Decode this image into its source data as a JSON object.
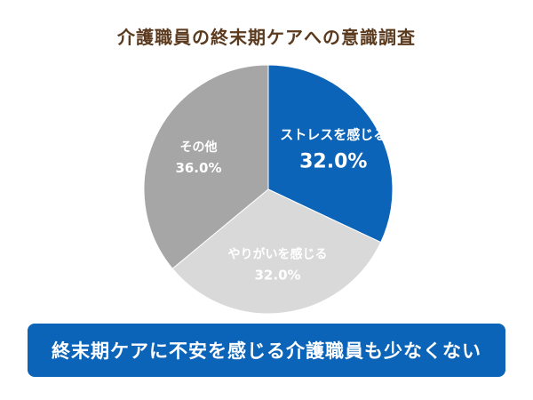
{
  "chart_data": {
    "type": "pie",
    "title": "介護職員の終末期ケアへの意識調査",
    "slices": [
      {
        "label": "ストレスを感じる",
        "value": 32.0,
        "value_text": "32.0%",
        "color": "#0b64b8",
        "label_color": "#ffffff",
        "emphasis": true
      },
      {
        "label": "やりがいを感じる",
        "value": 32.0,
        "value_text": "32.0%",
        "color": "#d9d9d9",
        "label_color": "#ffffff",
        "emphasis": false
      },
      {
        "label": "その他",
        "value": 36.0,
        "value_text": "36.0%",
        "color": "#a6a6a6",
        "label_color": "#ffffff",
        "emphasis": false
      }
    ],
    "start": "12 o'clock",
    "direction": "clockwise"
  },
  "banner": {
    "text": "終末期ケアに不安を感じる介護職員も少なくない",
    "color": "#0b64b8"
  }
}
